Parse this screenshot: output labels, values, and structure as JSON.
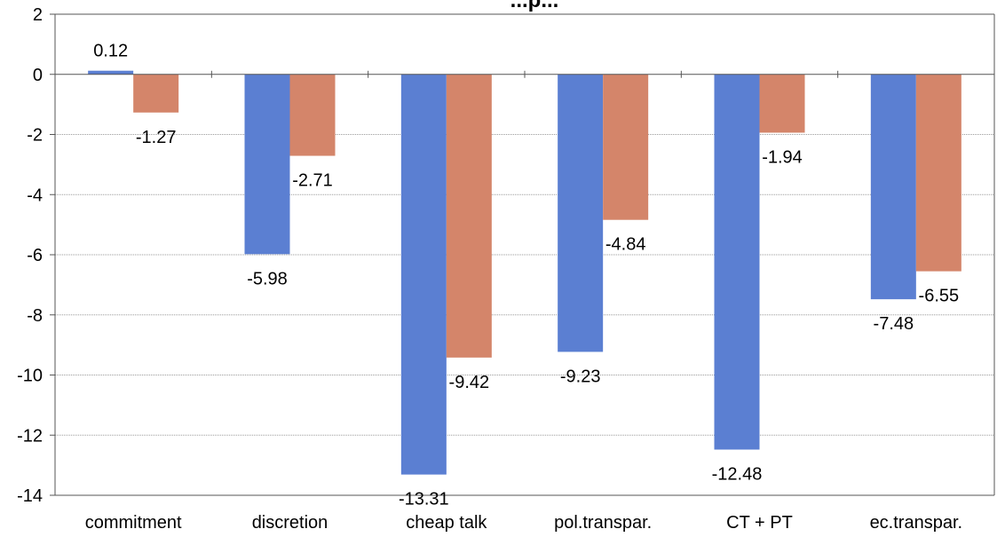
{
  "chart_data": {
    "type": "bar",
    "title": "...p...",
    "categories": [
      "commitment",
      "discretion",
      "cheap talk",
      "pol.transpar.",
      "CT + PT",
      "ec.transpar."
    ],
    "series": [
      {
        "values": [
          0.12,
          -5.98,
          -13.31,
          -9.23,
          -12.48,
          -7.48
        ],
        "color": "#5b7fd2"
      },
      {
        "values": [
          -1.27,
          -2.71,
          -9.42,
          -4.84,
          -1.94,
          -6.55
        ],
        "color": "#d4856a"
      }
    ],
    "data_labels": [
      [
        "0.12",
        "-5.98",
        "-13.31",
        "-9.23",
        "-12.48",
        "-7.48"
      ],
      [
        "-1.27",
        "-2.71",
        "-9.42",
        "-4.84",
        "-1.94",
        "-6.55"
      ]
    ],
    "ylim": [
      -14,
      2
    ],
    "yticks": [
      "2",
      "0",
      "-2",
      "-4",
      "-6",
      "-8",
      "-10",
      "-12",
      "-14"
    ],
    "ytick_values": [
      2,
      0,
      -2,
      -4,
      -6,
      -8,
      -10,
      -12,
      -14
    ],
    "grid": true,
    "xlabel": "",
    "ylabel": ""
  }
}
